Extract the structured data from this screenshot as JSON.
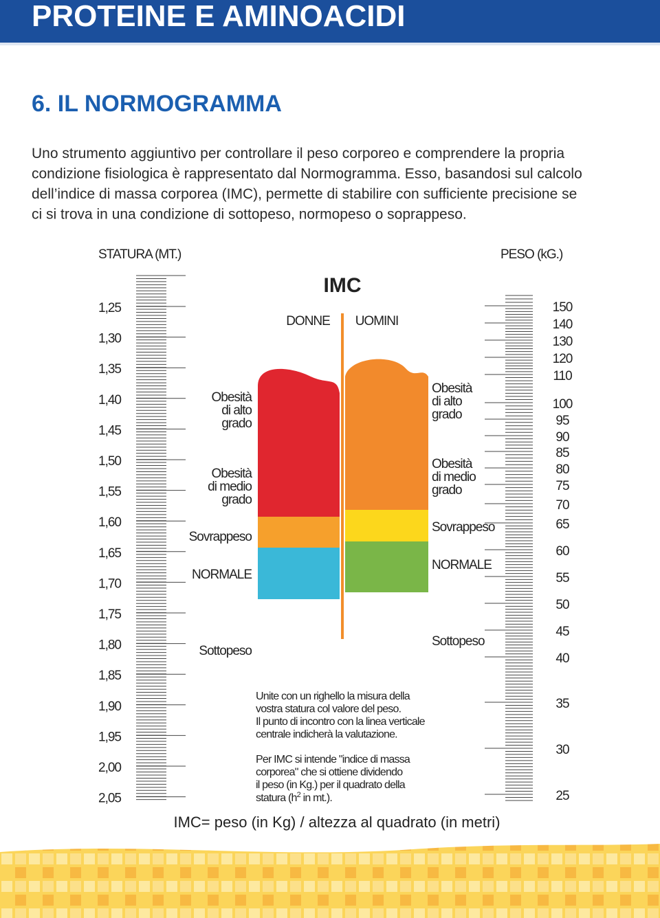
{
  "header": {
    "title": "PROTEINE E AMINOACIDI"
  },
  "section": {
    "title": "6. IL NORMOGRAMMA",
    "paragraph": [
      "Uno strumento aggiuntivo per controllare il peso corporeo e comprendere la propria",
      "condizione fisiologica è rappresentato dal Normogramma. Esso, basandosi sul calcolo",
      "dell’indice di massa corporea (IMC), permette di stabilire con sufficiente precisione se",
      "ci si trova in una condizione di sottopeso, normopeso o soprappeso."
    ]
  },
  "nomogram": {
    "height_label": "STATURA (MT.)",
    "weight_label": "PESO (kG.)",
    "imc_title": "IMC",
    "women": "DONNE",
    "men": "UOMINI",
    "height_scale": [
      "1,25",
      "1,30",
      "1,35",
      "1,40",
      "1,45",
      "1,50",
      "1,55",
      "1,60",
      "1,65",
      "1,70",
      "1,75",
      "1,80",
      "1,85",
      "1,90",
      "1,95",
      "2,00",
      "2,05"
    ],
    "weight_scale": [
      "150",
      "140",
      "130",
      "120",
      "110",
      "100",
      "95",
      "90",
      "85",
      "80",
      "75",
      "70",
      "65",
      "60",
      "55",
      "50",
      "45",
      "40",
      "35",
      "30",
      "25"
    ],
    "women_zones": [
      [
        "Obesità",
        "di alto",
        "grado"
      ],
      [
        "Obesità",
        "di medio",
        "grado"
      ],
      [
        "Sovrappeso"
      ],
      [
        "NORMALE"
      ],
      [
        "Sottopeso"
      ]
    ],
    "men_zones": [
      [
        "Obesità",
        "di alto",
        "grado"
      ],
      [
        "Obesità",
        "di medio",
        "grado"
      ],
      [
        "Sovrappeso"
      ],
      [
        "NORMALE"
      ],
      [
        "Sottopeso"
      ]
    ],
    "instructions_1": [
      "Unite con un righello la misura della",
      "vostra statura col valore del peso.",
      "Il punto di incontro con la linea verticale",
      "centrale indicherà la valutazione."
    ],
    "instructions_2": [
      "Per IMC si intende \"indice di massa",
      "corporea\" che si ottiene dividendo",
      "il peso (in Kg.) per il quadrato della"
    ],
    "instructions_2_last": {
      "text": "statura (h",
      "sup": "2",
      "after": " in mt.)."
    },
    "formula": "IMC= peso (in Kg) / altezza al quadrato (in metri)"
  }
}
